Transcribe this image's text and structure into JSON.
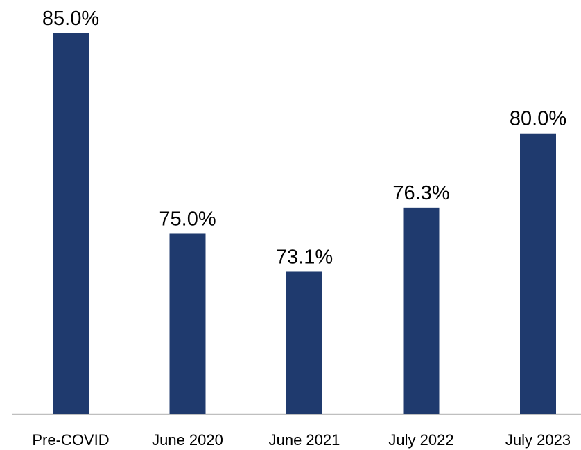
{
  "chart_data": {
    "type": "bar",
    "categories": [
      "Pre-COVID",
      "June 2020",
      "June 2021",
      "July 2022",
      "July 2023"
    ],
    "values": [
      85.0,
      75.0,
      73.1,
      76.3,
      80.0
    ],
    "value_labels": [
      "85.0%",
      "75.0%",
      "73.1%",
      "76.3%",
      "80.0%"
    ],
    "color": "#1f3a6e",
    "ylim": [
      66,
      85
    ]
  }
}
